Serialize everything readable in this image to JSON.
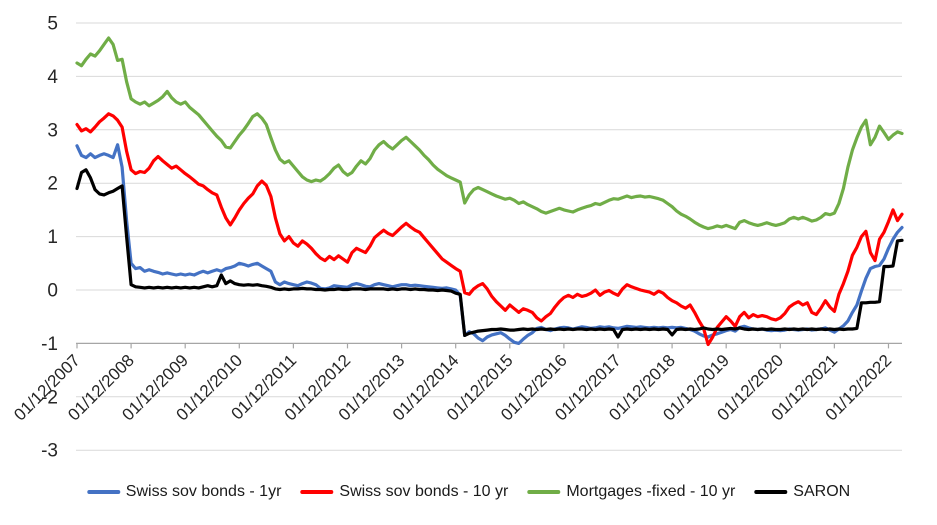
{
  "chart_data": {
    "type": "line",
    "title": "",
    "grid": "horizontal",
    "legend_position": "bottom",
    "axis_crosses_at": -1,
    "points_per_label_interval": 12,
    "x_axis": {
      "rotation": -45,
      "tick_labels": [
        "01/12/2007",
        "01/12/2008",
        "01/12/2009",
        "01/12/2010",
        "01/12/2011",
        "01/12/2012",
        "01/12/2013",
        "01/12/2014",
        "01/12/2015",
        "01/12/2016",
        "01/12/2017",
        "01/12/2018",
        "01/12/2019",
        "01/12/2020",
        "01/12/2021",
        "01/12/2022"
      ]
    },
    "y_axis": {
      "min": -3,
      "max": 5,
      "step": 1,
      "tick_labels": [
        "5",
        "4",
        "3",
        "2",
        "1",
        "0",
        "-1",
        "-2",
        "-3"
      ]
    },
    "colors": {
      "gridline": "#D9D9D9",
      "axis": "#A6A6A6",
      "label_text": "#262626"
    },
    "series": [
      {
        "name": "Swiss sov bonds - 1yr",
        "color": "#4472C4",
        "values": [
          2.7,
          2.52,
          2.48,
          2.55,
          2.48,
          2.52,
          2.55,
          2.52,
          2.48,
          2.72,
          2.3,
          1.3,
          0.5,
          0.4,
          0.42,
          0.35,
          0.38,
          0.35,
          0.33,
          0.3,
          0.32,
          0.3,
          0.28,
          0.3,
          0.28,
          0.3,
          0.28,
          0.32,
          0.35,
          0.32,
          0.35,
          0.38,
          0.35,
          0.4,
          0.42,
          0.45,
          0.5,
          0.48,
          0.45,
          0.48,
          0.5,
          0.45,
          0.4,
          0.35,
          0.15,
          0.1,
          0.15,
          0.12,
          0.1,
          0.08,
          0.12,
          0.15,
          0.13,
          0.1,
          0.03,
          0.02,
          0.04,
          0.08,
          0.07,
          0.06,
          0.05,
          0.1,
          0.12,
          0.1,
          0.07,
          0.06,
          0.1,
          0.12,
          0.1,
          0.08,
          0.06,
          0.08,
          0.1,
          0.1,
          0.08,
          0.09,
          0.08,
          0.07,
          0.06,
          0.05,
          0.04,
          0.03,
          0.04,
          0.02,
          0.0,
          -0.1,
          -0.85,
          -0.78,
          -0.82,
          -0.9,
          -0.95,
          -0.88,
          -0.84,
          -0.82,
          -0.8,
          -0.85,
          -0.92,
          -0.98,
          -1.0,
          -0.92,
          -0.85,
          -0.8,
          -0.72,
          -0.7,
          -0.74,
          -0.76,
          -0.73,
          -0.71,
          -0.7,
          -0.71,
          -0.73,
          -0.71,
          -0.69,
          -0.7,
          -0.72,
          -0.71,
          -0.69,
          -0.7,
          -0.69,
          -0.71,
          -0.72,
          -0.7,
          -0.68,
          -0.69,
          -0.7,
          -0.69,
          -0.7,
          -0.71,
          -0.7,
          -0.71,
          -0.7,
          -0.71,
          -0.7,
          -0.71,
          -0.7,
          -0.72,
          -0.74,
          -0.77,
          -0.82,
          -0.86,
          -0.88,
          -0.84,
          -0.82,
          -0.79,
          -0.76,
          -0.74,
          -0.77,
          -0.7,
          -0.68,
          -0.71,
          -0.73,
          -0.74,
          -0.73,
          -0.75,
          -0.76,
          -0.75,
          -0.76,
          -0.75,
          -0.73,
          -0.74,
          -0.75,
          -0.74,
          -0.73,
          -0.75,
          -0.74,
          -0.73,
          -0.71,
          -0.75,
          -0.79,
          -0.73,
          -0.67,
          -0.58,
          -0.42,
          -0.28,
          -0.02,
          0.22,
          0.4,
          0.44,
          0.46,
          0.58,
          0.78,
          0.95,
          1.08,
          1.17
        ]
      },
      {
        "name": "Swiss sov bonds - 10 yr",
        "color": "#FF0000",
        "values": [
          3.1,
          2.98,
          3.02,
          2.96,
          3.05,
          3.15,
          3.22,
          3.3,
          3.26,
          3.18,
          3.05,
          2.6,
          2.25,
          2.18,
          2.22,
          2.2,
          2.28,
          2.42,
          2.5,
          2.42,
          2.35,
          2.28,
          2.32,
          2.25,
          2.18,
          2.12,
          2.05,
          1.98,
          1.95,
          1.88,
          1.82,
          1.78,
          1.55,
          1.35,
          1.22,
          1.35,
          1.5,
          1.62,
          1.72,
          1.8,
          1.95,
          2.04,
          1.96,
          1.75,
          1.35,
          1.05,
          0.92,
          1.0,
          0.88,
          0.82,
          0.92,
          0.86,
          0.78,
          0.68,
          0.6,
          0.55,
          0.63,
          0.57,
          0.64,
          0.58,
          0.52,
          0.7,
          0.78,
          0.74,
          0.7,
          0.82,
          0.98,
          1.05,
          1.12,
          1.06,
          1.02,
          1.1,
          1.18,
          1.25,
          1.18,
          1.12,
          1.08,
          0.98,
          0.88,
          0.78,
          0.68,
          0.58,
          0.52,
          0.46,
          0.4,
          0.35,
          -0.05,
          -0.08,
          0.02,
          0.08,
          0.12,
          0.02,
          -0.12,
          -0.22,
          -0.3,
          -0.38,
          -0.28,
          -0.35,
          -0.42,
          -0.35,
          -0.38,
          -0.42,
          -0.52,
          -0.58,
          -0.5,
          -0.44,
          -0.32,
          -0.22,
          -0.14,
          -0.1,
          -0.14,
          -0.08,
          -0.12,
          -0.1,
          -0.06,
          0.0,
          -0.1,
          -0.04,
          -0.01,
          -0.06,
          -0.1,
          0.02,
          0.1,
          0.06,
          0.03,
          0.0,
          -0.02,
          -0.04,
          -0.08,
          -0.02,
          -0.06,
          -0.14,
          -0.2,
          -0.24,
          -0.3,
          -0.34,
          -0.28,
          -0.42,
          -0.58,
          -0.72,
          -1.02,
          -0.88,
          -0.7,
          -0.6,
          -0.5,
          -0.58,
          -0.68,
          -0.5,
          -0.42,
          -0.52,
          -0.46,
          -0.5,
          -0.48,
          -0.5,
          -0.54,
          -0.56,
          -0.52,
          -0.44,
          -0.32,
          -0.26,
          -0.22,
          -0.28,
          -0.24,
          -0.42,
          -0.46,
          -0.34,
          -0.2,
          -0.32,
          -0.4,
          -0.08,
          0.12,
          0.35,
          0.65,
          0.8,
          1.0,
          1.1,
          0.7,
          0.55,
          0.95,
          1.08,
          1.28,
          1.5,
          1.3,
          1.42
        ]
      },
      {
        "name": "Mortgages -fixed - 10 yr",
        "color": "#70AD47",
        "values": [
          4.25,
          4.2,
          4.32,
          4.42,
          4.38,
          4.48,
          4.6,
          4.72,
          4.6,
          4.3,
          4.32,
          3.9,
          3.58,
          3.52,
          3.48,
          3.52,
          3.45,
          3.5,
          3.55,
          3.62,
          3.72,
          3.6,
          3.52,
          3.48,
          3.52,
          3.42,
          3.35,
          3.28,
          3.18,
          3.08,
          2.98,
          2.88,
          2.8,
          2.68,
          2.66,
          2.78,
          2.9,
          3.0,
          3.12,
          3.25,
          3.3,
          3.22,
          3.1,
          2.85,
          2.62,
          2.45,
          2.38,
          2.42,
          2.32,
          2.22,
          2.12,
          2.06,
          2.03,
          2.06,
          2.04,
          2.1,
          2.18,
          2.28,
          2.34,
          2.22,
          2.15,
          2.2,
          2.32,
          2.42,
          2.36,
          2.46,
          2.62,
          2.72,
          2.78,
          2.7,
          2.64,
          2.72,
          2.8,
          2.86,
          2.78,
          2.7,
          2.62,
          2.52,
          2.44,
          2.34,
          2.26,
          2.2,
          2.14,
          2.1,
          2.06,
          2.02,
          1.63,
          1.78,
          1.88,
          1.92,
          1.88,
          1.84,
          1.8,
          1.76,
          1.73,
          1.7,
          1.72,
          1.68,
          1.62,
          1.65,
          1.6,
          1.56,
          1.52,
          1.47,
          1.44,
          1.47,
          1.5,
          1.53,
          1.5,
          1.48,
          1.46,
          1.5,
          1.53,
          1.56,
          1.58,
          1.62,
          1.6,
          1.64,
          1.68,
          1.71,
          1.7,
          1.73,
          1.76,
          1.73,
          1.75,
          1.76,
          1.74,
          1.75,
          1.73,
          1.71,
          1.68,
          1.62,
          1.56,
          1.48,
          1.42,
          1.38,
          1.33,
          1.27,
          1.22,
          1.18,
          1.15,
          1.17,
          1.2,
          1.18,
          1.21,
          1.18,
          1.15,
          1.27,
          1.3,
          1.26,
          1.23,
          1.21,
          1.23,
          1.26,
          1.23,
          1.21,
          1.23,
          1.26,
          1.33,
          1.36,
          1.33,
          1.36,
          1.33,
          1.29,
          1.31,
          1.36,
          1.43,
          1.41,
          1.44,
          1.62,
          1.9,
          2.3,
          2.62,
          2.85,
          3.05,
          3.18,
          2.72,
          2.86,
          3.07,
          2.95,
          2.82,
          2.9,
          2.96,
          2.93
        ]
      },
      {
        "name": "SARON",
        "color": "#000000",
        "values": [
          1.9,
          2.2,
          2.25,
          2.1,
          1.88,
          1.8,
          1.78,
          1.82,
          1.85,
          1.9,
          1.95,
          1.0,
          0.1,
          0.06,
          0.05,
          0.04,
          0.05,
          0.04,
          0.05,
          0.04,
          0.05,
          0.04,
          0.05,
          0.04,
          0.05,
          0.04,
          0.05,
          0.04,
          0.06,
          0.08,
          0.06,
          0.08,
          0.28,
          0.12,
          0.17,
          0.12,
          0.1,
          0.09,
          0.1,
          0.09,
          0.1,
          0.08,
          0.07,
          0.05,
          0.02,
          0.01,
          0.02,
          0.01,
          0.02,
          0.02,
          0.03,
          0.02,
          0.02,
          0.01,
          0.01,
          0.0,
          0.01,
          0.01,
          0.02,
          0.01,
          0.01,
          0.02,
          0.02,
          0.02,
          0.01,
          0.02,
          0.02,
          0.02,
          0.02,
          0.01,
          0.02,
          0.01,
          0.02,
          0.02,
          0.01,
          0.02,
          0.01,
          0.01,
          0.0,
          0.0,
          -0.01,
          0.0,
          -0.01,
          -0.02,
          -0.06,
          -0.08,
          -0.85,
          -0.81,
          -0.79,
          -0.77,
          -0.76,
          -0.75,
          -0.74,
          -0.74,
          -0.73,
          -0.74,
          -0.75,
          -0.75,
          -0.74,
          -0.73,
          -0.74,
          -0.73,
          -0.74,
          -0.73,
          -0.74,
          -0.73,
          -0.74,
          -0.73,
          -0.74,
          -0.73,
          -0.74,
          -0.73,
          -0.73,
          -0.74,
          -0.73,
          -0.74,
          -0.73,
          -0.74,
          -0.73,
          -0.74,
          -0.88,
          -0.74,
          -0.73,
          -0.74,
          -0.73,
          -0.74,
          -0.73,
          -0.74,
          -0.73,
          -0.74,
          -0.73,
          -0.74,
          -0.84,
          -0.74,
          -0.73,
          -0.74,
          -0.73,
          -0.74,
          -0.73,
          -0.71,
          -0.73,
          -0.74,
          -0.73,
          -0.74,
          -0.73,
          -0.72,
          -0.73,
          -0.71,
          -0.73,
          -0.74,
          -0.73,
          -0.74,
          -0.73,
          -0.74,
          -0.73,
          -0.74,
          -0.74,
          -0.73,
          -0.74,
          -0.73,
          -0.74,
          -0.73,
          -0.74,
          -0.73,
          -0.74,
          -0.73,
          -0.74,
          -0.73,
          -0.74,
          -0.73,
          -0.74,
          -0.73,
          -0.73,
          -0.72,
          -0.24,
          -0.24,
          -0.23,
          -0.23,
          -0.22,
          0.44,
          0.44,
          0.45,
          0.92,
          0.93
        ]
      }
    ]
  }
}
